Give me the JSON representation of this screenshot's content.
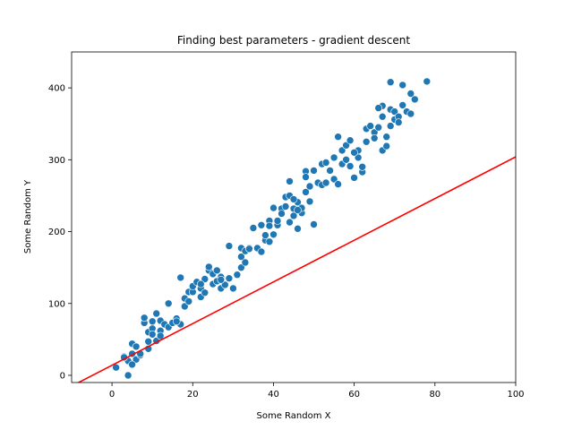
{
  "chart_data": {
    "type": "scatter",
    "title": "Finding best parameters - gradient descent",
    "xlabel": "Some Random X",
    "ylabel": "Some Random Y",
    "xlim": [
      -10,
      100
    ],
    "ylim": [
      -10,
      450
    ],
    "xticks": [
      0,
      20,
      40,
      60,
      80,
      100
    ],
    "yticks": [
      0,
      100,
      200,
      300,
      400
    ],
    "grid": false,
    "legend": "none",
    "point_color": "#1f77b4",
    "line_color": "#ff0000",
    "points": [
      [
        1,
        11
      ],
      [
        3,
        26
      ],
      [
        4,
        20
      ],
      [
        4,
        0
      ],
      [
        5,
        44
      ],
      [
        5,
        30
      ],
      [
        6,
        40
      ],
      [
        6,
        22
      ],
      [
        7,
        28
      ],
      [
        5,
        15
      ],
      [
        8,
        73
      ],
      [
        8,
        80
      ],
      [
        9,
        60
      ],
      [
        9,
        37
      ],
      [
        10,
        75
      ],
      [
        10,
        65
      ],
      [
        10,
        57
      ],
      [
        11,
        86
      ],
      [
        11,
        48
      ],
      [
        12,
        62
      ],
      [
        12,
        76
      ],
      [
        13,
        71
      ],
      [
        14,
        67
      ],
      [
        14,
        100
      ],
      [
        15,
        73
      ],
      [
        16,
        79
      ],
      [
        17,
        71
      ],
      [
        17,
        136
      ],
      [
        18,
        96
      ],
      [
        18,
        107
      ],
      [
        19,
        103
      ],
      [
        19,
        116
      ],
      [
        20,
        116
      ],
      [
        20,
        124
      ],
      [
        21,
        130
      ],
      [
        22,
        109
      ],
      [
        22,
        121
      ],
      [
        23,
        115
      ],
      [
        23,
        134
      ],
      [
        24,
        146
      ],
      [
        24,
        151
      ],
      [
        25,
        127
      ],
      [
        25,
        141
      ],
      [
        26,
        131
      ],
      [
        26,
        146
      ],
      [
        27,
        121
      ],
      [
        27,
        137
      ],
      [
        28,
        126
      ],
      [
        29,
        135
      ],
      [
        29,
        180
      ],
      [
        30,
        121
      ],
      [
        31,
        140
      ],
      [
        32,
        150
      ],
      [
        32,
        165
      ],
      [
        32,
        177
      ],
      [
        33,
        157
      ],
      [
        33,
        173
      ],
      [
        34,
        177
      ],
      [
        35,
        205
      ],
      [
        36,
        177
      ],
      [
        37,
        172
      ],
      [
        37,
        209
      ],
      [
        38,
        188
      ],
      [
        38,
        195
      ],
      [
        39,
        186
      ],
      [
        39,
        215
      ],
      [
        40,
        233
      ],
      [
        40,
        196
      ],
      [
        41,
        209
      ],
      [
        41,
        215
      ],
      [
        42,
        232
      ],
      [
        42,
        225
      ],
      [
        43,
        248
      ],
      [
        43,
        235
      ],
      [
        44,
        270
      ],
      [
        44,
        250
      ],
      [
        44,
        213
      ],
      [
        45,
        222
      ],
      [
        45,
        232
      ],
      [
        46,
        241
      ],
      [
        46,
        204
      ],
      [
        47,
        226
      ],
      [
        47,
        233
      ],
      [
        48,
        255
      ],
      [
        48,
        284
      ],
      [
        48,
        276
      ],
      [
        49,
        242
      ],
      [
        49,
        263
      ],
      [
        50,
        285
      ],
      [
        50,
        210
      ],
      [
        51,
        268
      ],
      [
        52,
        294
      ],
      [
        52,
        265
      ],
      [
        53,
        296
      ],
      [
        54,
        285
      ],
      [
        55,
        303
      ],
      [
        55,
        273
      ],
      [
        56,
        266
      ],
      [
        56,
        332
      ],
      [
        57,
        294
      ],
      [
        57,
        313
      ],
      [
        58,
        320
      ],
      [
        59,
        291
      ],
      [
        59,
        327
      ],
      [
        60,
        275
      ],
      [
        61,
        303
      ],
      [
        61,
        313
      ],
      [
        62,
        283
      ],
      [
        62,
        290
      ],
      [
        63,
        325
      ],
      [
        63,
        343
      ],
      [
        64,
        347
      ],
      [
        65,
        338
      ],
      [
        65,
        330
      ],
      [
        66,
        345
      ],
      [
        67,
        313
      ],
      [
        67,
        360
      ],
      [
        67,
        375
      ],
      [
        68,
        332
      ],
      [
        68,
        319
      ],
      [
        69,
        347
      ],
      [
        69,
        370
      ],
      [
        69,
        408
      ],
      [
        70,
        356
      ],
      [
        70,
        367
      ],
      [
        71,
        360
      ],
      [
        71,
        352
      ],
      [
        72,
        376
      ],
      [
        72,
        404
      ],
      [
        73,
        367
      ],
      [
        74,
        364
      ],
      [
        74,
        392
      ],
      [
        75,
        384
      ],
      [
        78,
        409
      ],
      [
        66,
        372
      ],
      [
        60,
        310
      ],
      [
        53,
        268
      ],
      [
        46,
        230
      ],
      [
        39,
        208
      ],
      [
        34,
        176
      ],
      [
        27,
        133
      ],
      [
        22,
        127
      ],
      [
        16,
        75
      ],
      [
        12,
        55
      ],
      [
        6,
        40
      ],
      [
        3,
        25
      ],
      [
        7,
        30
      ],
      [
        9,
        47
      ],
      [
        45,
        245
      ],
      [
        58,
        300
      ]
    ],
    "line": {
      "slope": 2.9,
      "intercept": 14,
      "x_range": [
        -10,
        100
      ]
    }
  }
}
